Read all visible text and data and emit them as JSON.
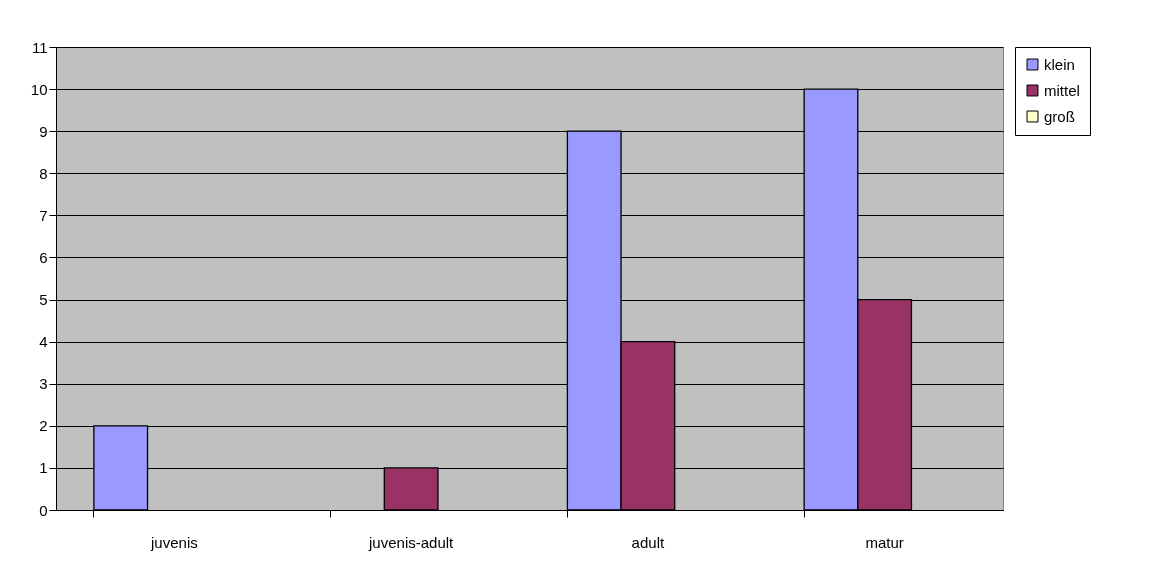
{
  "chart_data": {
    "type": "bar",
    "categories": [
      "juvenis",
      "juvenis-adult",
      "adult",
      "matur"
    ],
    "series": [
      {
        "name": "klein",
        "color": "#9999ff",
        "values": [
          2,
          0,
          9,
          10
        ]
      },
      {
        "name": "mittel",
        "color": "#993366",
        "values": [
          0,
          1,
          4,
          5
        ]
      },
      {
        "name": "groß",
        "color": "#ffffcc",
        "values": [
          0,
          0,
          0,
          0
        ]
      }
    ],
    "ylim": [
      0,
      11
    ],
    "yticks": [
      0,
      1,
      2,
      3,
      4,
      5,
      6,
      7,
      8,
      9,
      10,
      11
    ],
    "grid": "y",
    "legend": "right"
  }
}
